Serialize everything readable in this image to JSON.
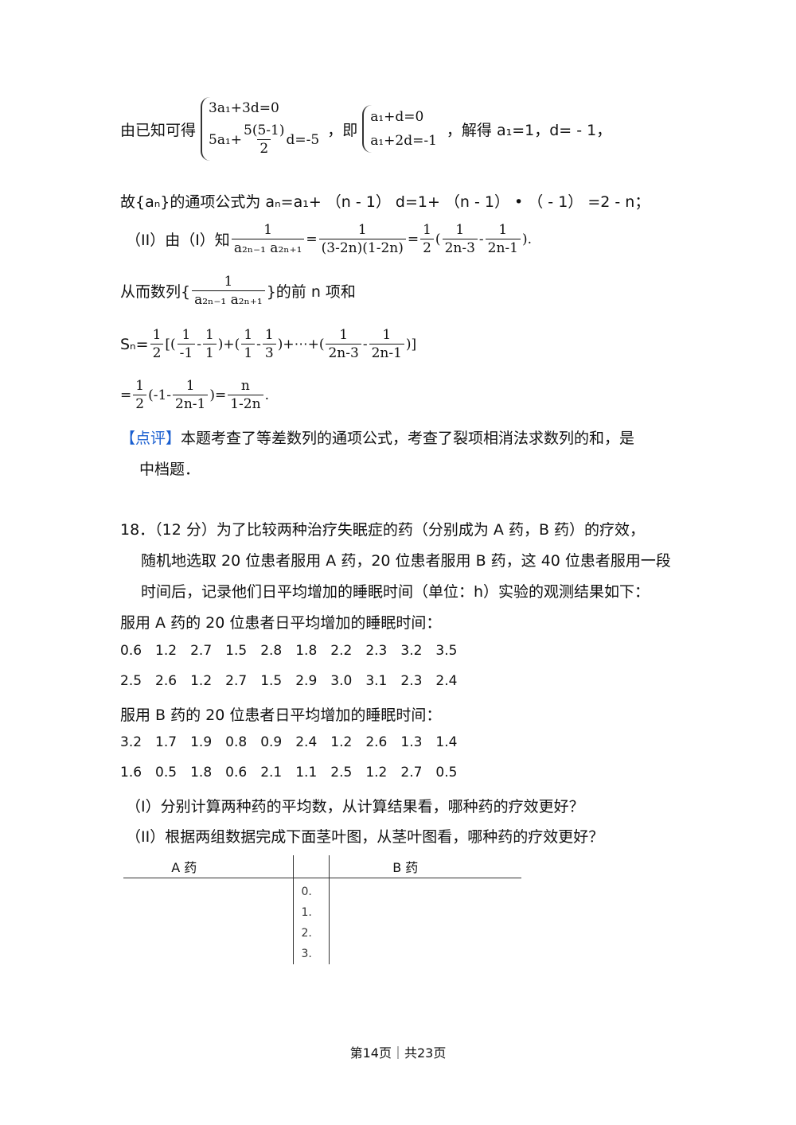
{
  "l1": {
    "pre": "由已知可得",
    "s1a": "3a₁+3d=0",
    "s1b_pre": "5a₁+",
    "s1b_num": "5(5-1)",
    "s1b_den": "2",
    "s1b_post": "d=-5",
    "mid": "，即",
    "s2a": "a₁+d=0",
    "s2b": "a₁+2d=-1",
    "post": "，解得 a₁=1，d= - 1，"
  },
  "l2": "故{aₙ}的通项公式为 aₙ=a₁+ （n - 1） d=1+ （n - 1） • （ - 1） =2 - n；",
  "l3": {
    "pre": "（II）由（I）知",
    "f1n": "1",
    "f1d": "a₂ₙ₋₁ a₂ₙ₊₁",
    "eq1": "=",
    "f2n": "1",
    "f2d": "(3-2n)(1-2n)",
    "eq2": "=",
    "f3n": "1",
    "f3d": "2",
    "op": "(",
    "f4n": "1",
    "f4d": "2n-3",
    "minus": "-",
    "f5n": "1",
    "f5d": "2n-1",
    "close": ")."
  },
  "l4": {
    "pre": "从而数列{",
    "fn": "1",
    "fd": "a₂ₙ₋₁ a₂ₙ₊₁",
    "post": "}的前 n 项和"
  },
  "l5": {
    "pre": "Sₙ=",
    "hn": "1",
    "hd": "2",
    "b1": "[(",
    "a1n": "1",
    "a1d": "-1",
    "m1": "-",
    "a2n": "1",
    "a2d": "1",
    "b2": ")+(",
    "a3n": "1",
    "a3d": "1",
    "m2": "-",
    "a4n": "1",
    "a4d": "3",
    "b3": ")+⋯+(",
    "a5n": "1",
    "a5d": "2n-3",
    "m3": "-",
    "a6n": "1",
    "a6d": "2n-1",
    "b4": ")]"
  },
  "l6": {
    "pre": "=",
    "hn": "1",
    "hd": "2",
    "p": "(-1-",
    "fn": "1",
    "fd": "2n-1",
    "q": ")=",
    "rn": "n",
    "rd": "1-2n",
    "end": "."
  },
  "comment": {
    "tag": "【点评】",
    "text": "本题考查了等差数列的通项公式，考查了裂项相消法求数列的和，是",
    "text2": "中档题．"
  },
  "q18": {
    "lines": [
      "18．（12 分）为了比较两种治疗失眠症的药（分别成为 A 药，B 药）的疗效，",
      "随机地选取 20 位患者服用 A 药，20 位患者服用 B 药，这 40 位患者服用一段",
      "时间后，记录他们日平均增加的睡眠时间（单位：h）实验的观测结果如下："
    ],
    "a_title": "服用 A 药的 20 位患者日平均增加的睡眠时间：",
    "a_row1": [
      "0.6",
      "1.2",
      "2.7",
      "1.5",
      "2.8",
      "1.8",
      "2.2",
      "2.3",
      "3.2",
      "3.5"
    ],
    "a_row2": [
      "2.5",
      "2.6",
      "1.2",
      "2.7",
      "1.5",
      "2.9",
      "3.0",
      "3.1",
      "2.3",
      "2.4"
    ],
    "b_title": "服用 B 药的 20 位患者日平均增加的睡眠时间：",
    "b_row1": [
      "3.2",
      "1.7",
      "1.9",
      "0.8",
      "0.9",
      "2.4",
      "1.2",
      "2.6",
      "1.3",
      "1.4"
    ],
    "b_row2": [
      "1.6",
      "0.5",
      "1.8",
      "0.6",
      "2.1",
      "1.1",
      "2.5",
      "1.2",
      "2.7",
      "0.5"
    ],
    "p1": "（I）分别计算两种药的平均数，从计算结果看，哪种药的疗效更好？",
    "p2": "（II）根据两组数据完成下面茎叶图，从茎叶图看，哪种药的疗效更好？"
  },
  "stemleaf": {
    "left_header": "A 药",
    "right_header": "B 药",
    "stems": [
      "0.",
      "1.",
      "2.",
      "3."
    ]
  },
  "footer": "第14页｜共23页",
  "colors": {
    "comment_tag": "#1a5fd0"
  }
}
